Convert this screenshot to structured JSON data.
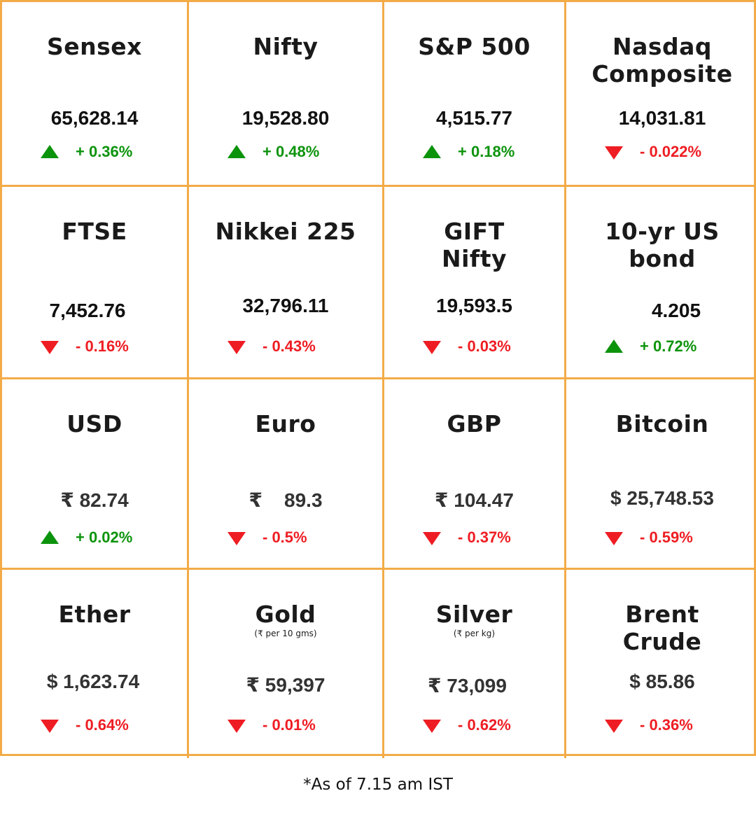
{
  "cells": [
    {
      "name": [
        "Sensex"
      ],
      "sub": "",
      "value": "65,628.14",
      "change": "+ 0.36%",
      "dir": "up"
    },
    {
      "name": [
        "Nifty"
      ],
      "sub": "",
      "value": "19,528.80",
      "change": "+ 0.48%",
      "dir": "up"
    },
    {
      "name": [
        "S&P 500"
      ],
      "sub": "",
      "value": "4,515.77",
      "change": "+ 0.18%",
      "dir": "up"
    },
    {
      "name": [
        "Nasdaq",
        "Composite"
      ],
      "sub": "",
      "value": "14,031.81",
      "change": "- 0.022%",
      "dir": "down"
    },
    {
      "name": [
        "FTSE"
      ],
      "sub": "",
      "value": "7,452.76",
      "change": "- 0.16%",
      "dir": "down"
    },
    {
      "name": [
        "Nikkei 225"
      ],
      "sub": "",
      "value": "32,796.11",
      "change": "- 0.43%",
      "dir": "down"
    },
    {
      "name": [
        "GIFT",
        "Nifty"
      ],
      "sub": "",
      "value": "19,593.5",
      "change": "- 0.03%",
      "dir": "down"
    },
    {
      "name": [
        "10-yr US",
        "bond"
      ],
      "sub": "",
      "value": "4.205",
      "change": "+ 0.72%",
      "dir": "up"
    },
    {
      "name": [
        "USD"
      ],
      "sub": "",
      "value": "₹ 82.74",
      "change": "+ 0.02%",
      "dir": "up"
    },
    {
      "name": [
        "Euro"
      ],
      "sub": "",
      "value": "₹    89.3",
      "change": "- 0.5%",
      "dir": "down"
    },
    {
      "name": [
        "GBP"
      ],
      "sub": "",
      "value": "₹ 104.47",
      "change": "- 0.37%",
      "dir": "down"
    },
    {
      "name": [
        "Bitcoin"
      ],
      "sub": "",
      "value": "$ 25,748.53",
      "change": "- 0.59%",
      "dir": "down"
    },
    {
      "name": [
        "Ether"
      ],
      "sub": "",
      "value": "$ 1,623.74",
      "change": "- 0.64%",
      "dir": "down"
    },
    {
      "name": [
        "Gold"
      ],
      "sub": "(₹ per 10 gms)",
      "value": "₹ 59,397",
      "change": "- 0.01%",
      "dir": "down"
    },
    {
      "name": [
        "Silver"
      ],
      "sub": "(₹ per kg)",
      "value": "₹ 73,099",
      "change": "- 0.62%",
      "dir": "down"
    },
    {
      "name": [
        "Brent",
        "Crude"
      ],
      "sub": "",
      "value": "$ 85.86",
      "change": "- 0.36%",
      "dir": "down"
    }
  ],
  "footer": "*As of 7.15 am IST",
  "colors": {
    "border": "#f3ab47",
    "up": "#0c930c",
    "down": "#ee1d23"
  }
}
